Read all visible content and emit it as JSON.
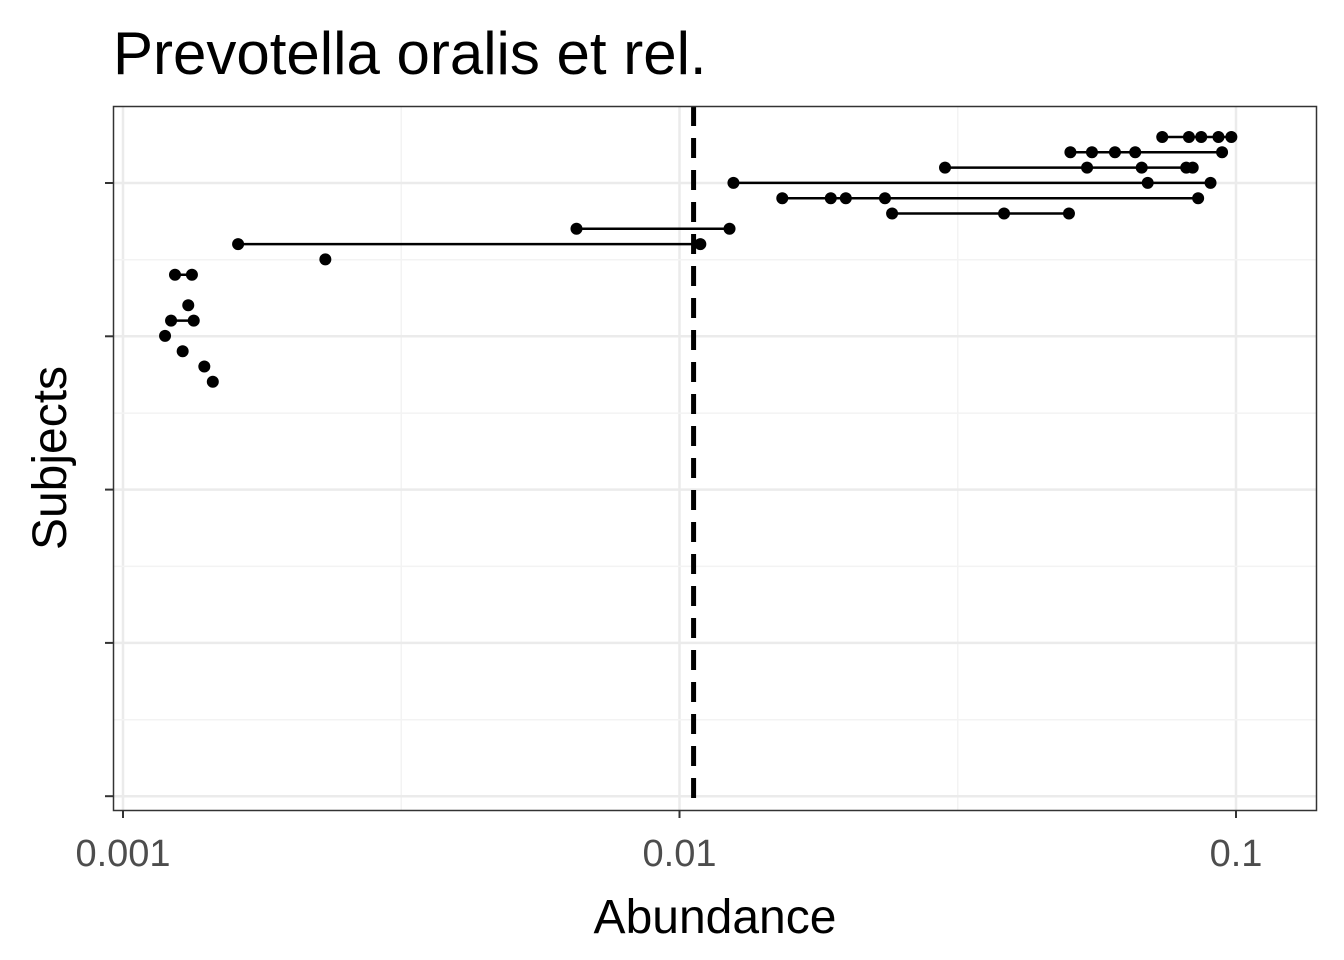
{
  "chart_data": {
    "type": "scatter",
    "title": "Prevotella oralis et rel.",
    "xlabel": "Abundance",
    "ylabel": "Subjects",
    "x_scale": "log10",
    "xlim": [
      0.00097,
      0.13
    ],
    "x_ticks": [
      {
        "value": 0.001,
        "label": "0.001"
      },
      {
        "value": 0.01,
        "label": "0.01"
      },
      {
        "value": 0.1,
        "label": "0.1"
      }
    ],
    "y_ticks_labeled": false,
    "grid": true,
    "legend": "none",
    "threshold_line": {
      "x": 0.0106,
      "style": "dashed"
    },
    "rows": [
      {
        "row": 1,
        "values": [
          0.0737,
          0.0823,
          0.0866,
          0.093,
          0.0981
        ]
      },
      {
        "row": 2,
        "values": [
          0.0504,
          0.0551,
          0.0606,
          0.0659,
          0.0944
        ]
      },
      {
        "row": 3,
        "values": [
          0.03,
          0.054,
          0.0677,
          0.0814,
          0.0836
        ]
      },
      {
        "row": 4,
        "values": [
          0.0125,
          0.0694,
          0.09
        ]
      },
      {
        "row": 5,
        "values": [
          0.0153,
          0.0187,
          0.0199,
          0.0234,
          0.0855
        ]
      },
      {
        "row": 6,
        "values": [
          0.0241,
          0.0383,
          0.0501
        ]
      },
      {
        "row": 7,
        "values": [
          0.00653,
          0.0123
        ]
      },
      {
        "row": 8,
        "values": [
          0.00161,
          0.0109
        ]
      },
      {
        "row": 9,
        "values": [
          0.00231
        ]
      },
      {
        "row": 10,
        "values": [
          0.00124,
          0.00133
        ]
      },
      {
        "row": 11,
        "values": []
      },
      {
        "row": 12,
        "values": [
          0.00131
        ]
      },
      {
        "row": 13,
        "values": [
          0.00122,
          0.00134
        ]
      },
      {
        "row": 14,
        "values": [
          0.00119
        ]
      },
      {
        "row": 15,
        "values": [
          0.00128
        ]
      },
      {
        "row": 16,
        "values": [
          0.0014
        ]
      },
      {
        "row": 17,
        "values": [
          0.00145
        ]
      }
    ]
  },
  "colors": {
    "points": "#000000",
    "panel_border": "#333333",
    "grid_major": "#ebebeb",
    "grid_minor": "#f3f3f3",
    "tick_label": "#4d4d4d"
  }
}
